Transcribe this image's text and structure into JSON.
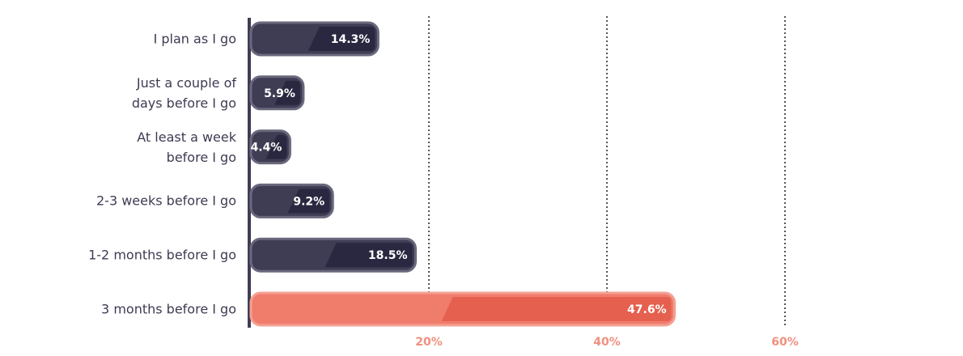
{
  "chart_data": {
    "type": "bar",
    "orientation": "horizontal",
    "categories": [
      "I plan as I go",
      "Just a couple of\ndays before I go",
      "At least a week\nbefore I go",
      "2-3 weeks before I go",
      "1-2 months before I go",
      "3 months before I go"
    ],
    "values": [
      14.3,
      5.9,
      4.4,
      9.2,
      18.5,
      47.6
    ],
    "value_labels": [
      "14.3%",
      "5.9%",
      "4.4%",
      "9.2%",
      "18.5%",
      "47.6%"
    ],
    "colors": [
      "#3f3d54",
      "#3f3d54",
      "#3f3d54",
      "#3f3d54",
      "#3f3d54",
      "#f07c6c"
    ],
    "xlim": [
      0,
      60
    ],
    "xticks": [
      {
        "value": 20,
        "label": "20%"
      },
      {
        "value": 40,
        "label": "40%"
      },
      {
        "value": 60,
        "label": "60%"
      }
    ],
    "grid": true
  }
}
